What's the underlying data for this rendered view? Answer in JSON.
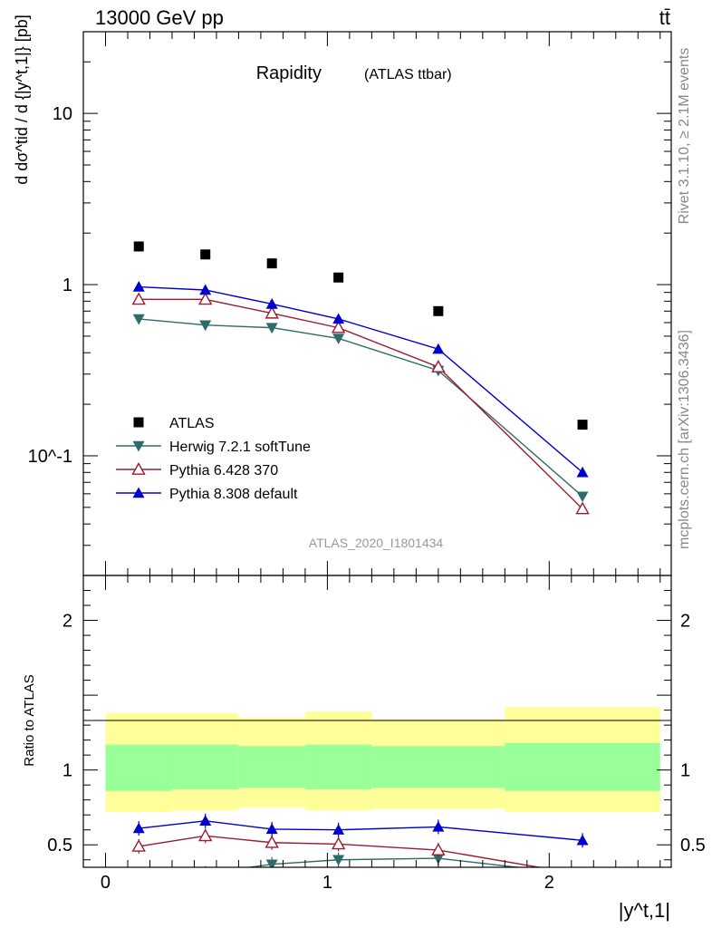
{
  "header": {
    "left": "13000 GeV pp",
    "right": "tt̄"
  },
  "side_labels": {
    "rivet": "Rivet 3.1.10, ≥ 2.1M events",
    "mcplots": "mcplots.cern.ch [arXiv:1306.3436]"
  },
  "chart_data": [
    {
      "type": "scatter",
      "panel": "main",
      "title": "Rapidity",
      "subtitle": "(ATLAS ttbar)",
      "ylabel": "d dσ^tid / d {|y^t,1|} [pb]",
      "xlabel": "|y^t,1|",
      "yscale": "log",
      "xlim": [
        -0.1,
        2.55
      ],
      "ylim": [
        0.02,
        30
      ],
      "y_tick_labels": [
        "10^-1",
        "1",
        "10"
      ],
      "watermark": "ATLAS_2020_I1801434",
      "legend_position": "bottom-left",
      "series": [
        {
          "name": "ATLAS",
          "marker": "square",
          "color": "#000000",
          "x": [
            0.15,
            0.45,
            0.75,
            1.05,
            1.5,
            2.15
          ],
          "y": [
            1.67,
            1.5,
            1.33,
            1.1,
            0.7,
            0.152
          ]
        },
        {
          "name": "Herwig 7.2.1 softTune",
          "marker": "triangle-down",
          "color": "#2e6b6b",
          "x": [
            0.15,
            0.45,
            0.75,
            1.05,
            1.5,
            2.15
          ],
          "y": [
            0.63,
            0.58,
            0.56,
            0.485,
            0.315,
            0.058
          ]
        },
        {
          "name": "Pythia 6.428 370",
          "marker": "triangle-up-open",
          "color": "#9b1b30",
          "x": [
            0.15,
            0.45,
            0.75,
            1.05,
            1.5,
            2.15
          ],
          "y": [
            0.82,
            0.82,
            0.68,
            0.56,
            0.33,
            0.049
          ]
        },
        {
          "name": "Pythia 8.308 default",
          "marker": "triangle-up",
          "color": "#0000cc",
          "x": [
            0.15,
            0.45,
            0.75,
            1.05,
            1.5,
            2.15
          ],
          "y": [
            0.97,
            0.93,
            0.77,
            0.63,
            0.42,
            0.08
          ]
        }
      ]
    },
    {
      "type": "line",
      "panel": "ratio",
      "ylabel": "Ratio to ATLAS",
      "xlim": [
        -0.1,
        2.55
      ],
      "ylim": [
        0.35,
        2.3
      ],
      "x_ticks": [
        0,
        1,
        2
      ],
      "y_ticks": [
        0.5,
        1,
        2
      ],
      "bands": {
        "bins": [
          0,
          0.3,
          0.6,
          0.9,
          1.2,
          1.8,
          2.5
        ],
        "yellow_low": [
          0.72,
          0.73,
          0.75,
          0.73,
          0.74,
          0.72
        ],
        "yellow_high": [
          1.38,
          1.38,
          1.35,
          1.39,
          1.34,
          1.42
        ],
        "green_low": [
          0.86,
          0.87,
          0.88,
          0.87,
          0.88,
          0.86
        ],
        "green_high": [
          1.17,
          1.17,
          1.16,
          1.17,
          1.16,
          1.18
        ]
      },
      "series": [
        {
          "name": "Herwig 7.2.1 softTune",
          "marker": "triangle-down",
          "color": "#2e6b6b",
          "x": [
            0.45,
            0.75,
            1.05,
            1.5,
            2.15
          ],
          "y": [
            0.31,
            0.37,
            0.4,
            0.41,
            0.3
          ]
        },
        {
          "name": "Pythia 6.428 370",
          "marker": "triangle-up-open",
          "color": "#9b1b30",
          "x": [
            0.15,
            0.45,
            0.75,
            1.05,
            1.5,
            2.15
          ],
          "y": [
            0.49,
            0.56,
            0.515,
            0.505,
            0.465,
            0.3
          ]
        },
        {
          "name": "Pythia 8.308 default",
          "marker": "triangle-up",
          "color": "#0000cc",
          "x": [
            0.15,
            0.45,
            0.75,
            1.05,
            1.5,
            2.15
          ],
          "y": [
            0.61,
            0.66,
            0.605,
            0.6,
            0.62,
            0.53
          ]
        }
      ]
    }
  ]
}
